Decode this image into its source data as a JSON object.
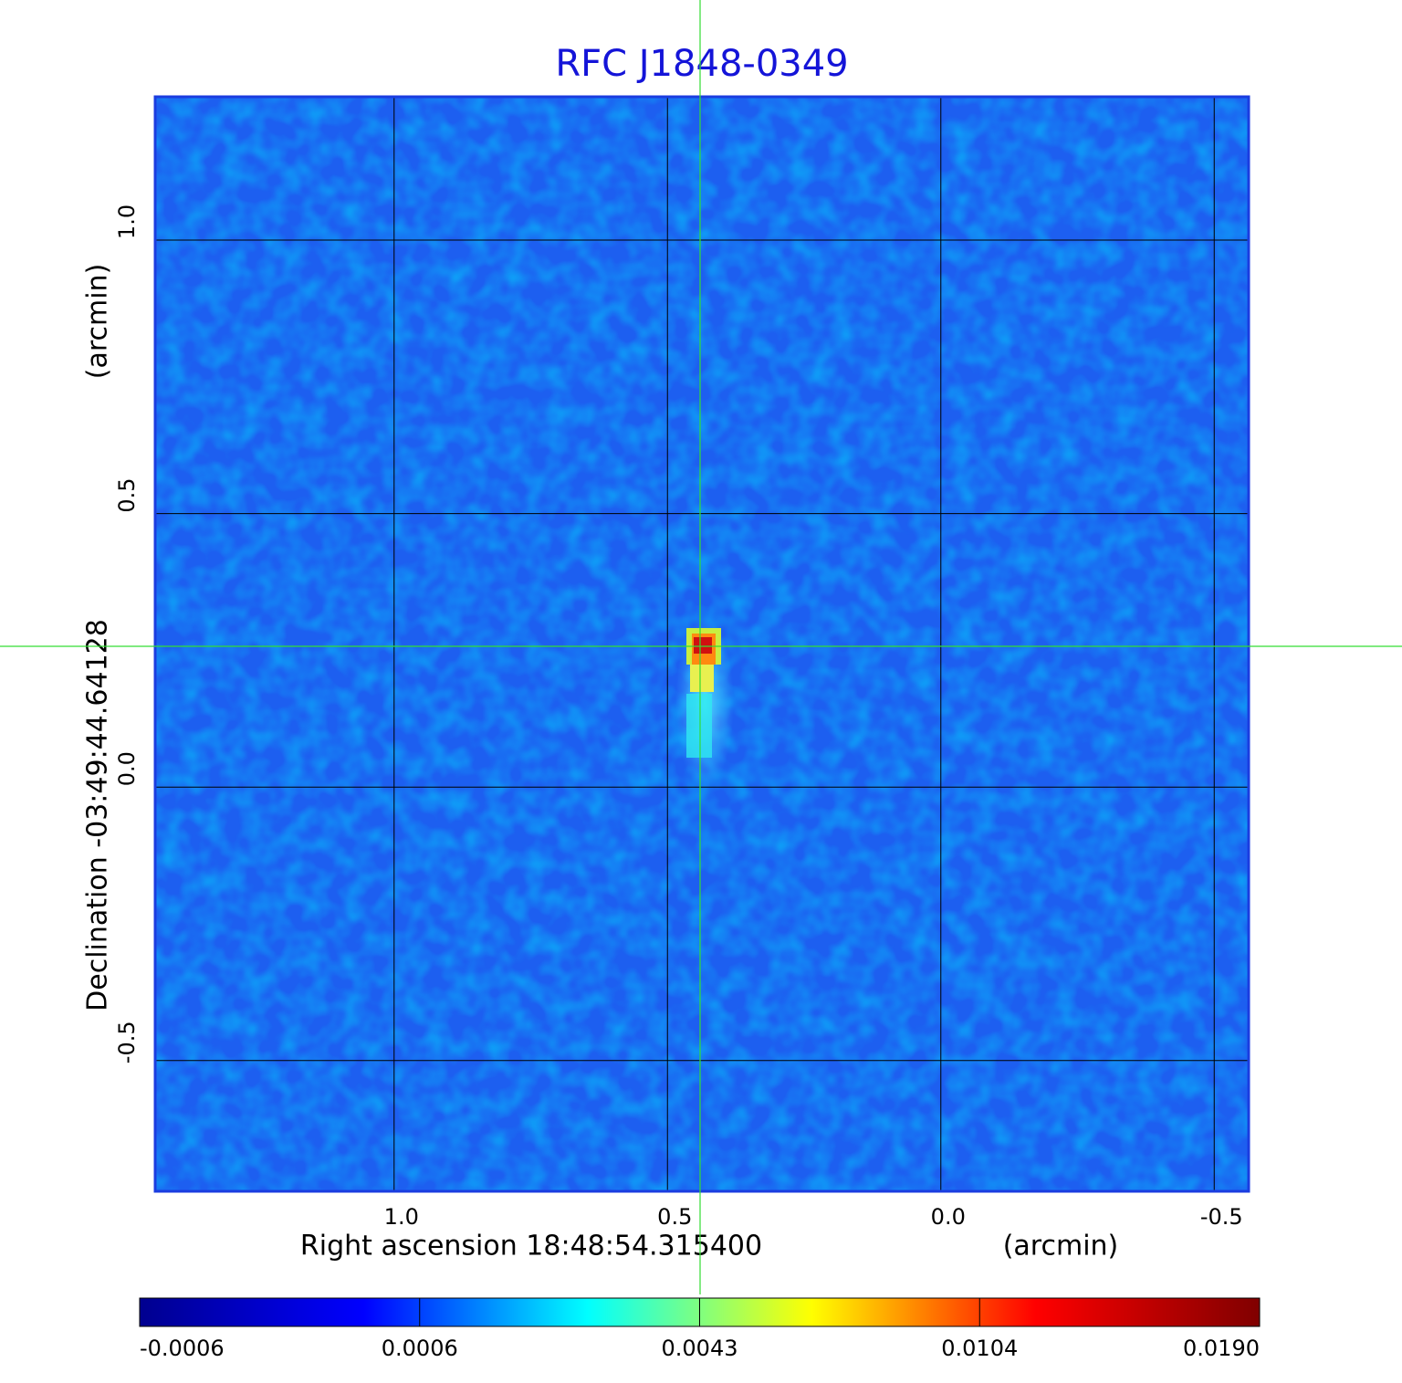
{
  "chart_data": {
    "type": "image",
    "title": "RFC J1848-0349",
    "x_label": "Right ascension  18:48:54.315400",
    "x_unit": "(arcmin)",
    "y_label": "Declination  -03:49:44.64128",
    "y_unit": "(arcmin)",
    "xlim": [
      1.437,
      -0.563
    ],
    "ylim": [
      -0.739,
      1.262
    ],
    "xticks": [
      {
        "value": 1,
        "label": "1.0"
      },
      0.5,
      {
        "value": 0,
        "label": "0.0"
      },
      -0.5
    ],
    "yticks": [
      -0.5,
      {
        "value": 0,
        "label": "0.0"
      },
      0.5,
      {
        "value": 1,
        "label": "1.0"
      }
    ],
    "grid": true,
    "colorbar": {
      "colors": [
        "#00008f",
        "#0000ff",
        "#00ffff",
        "#ffff00",
        "#ff0000",
        "#800000"
      ],
      "ticks": [
        -0.0006,
        0.0006,
        0.0043,
        0.0104,
        {
          "value": 0.019,
          "label": "0.0190"
        }
      ]
    }
  }
}
